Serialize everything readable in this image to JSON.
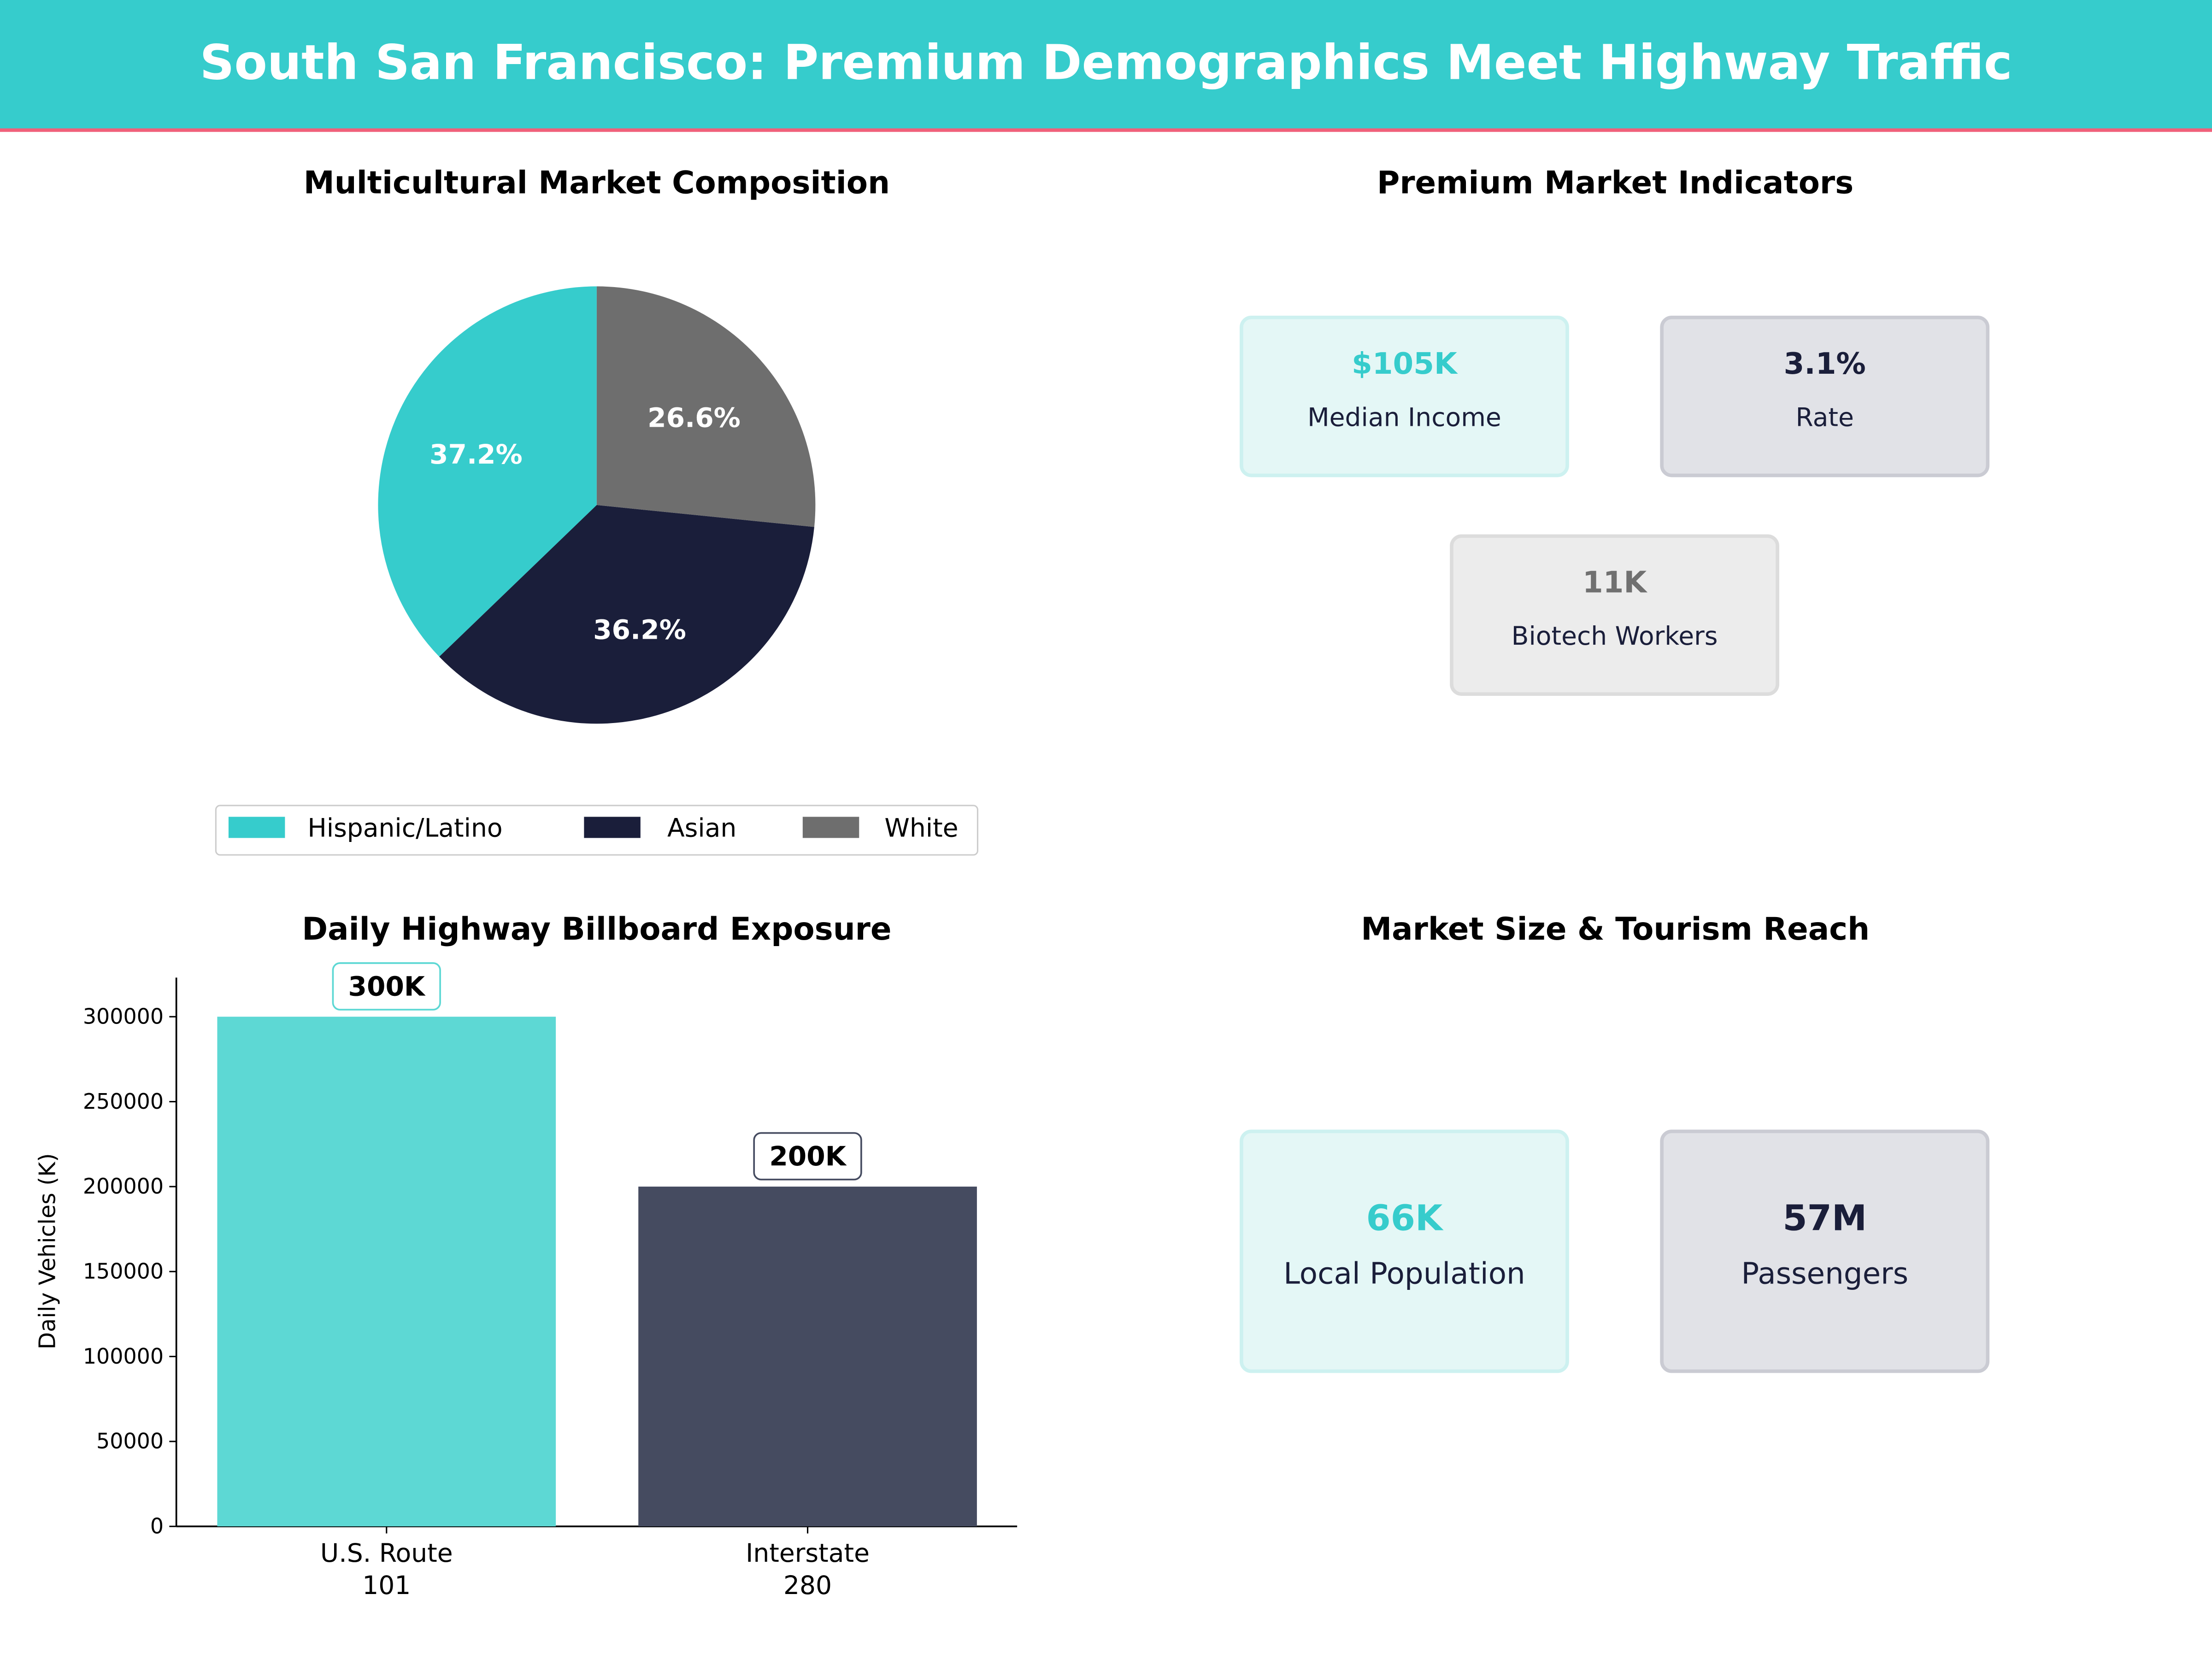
{
  "header": {
    "title": "South San Francisco: Premium Demographics Meet Highway Traffic",
    "bg_color": "#36CCCC",
    "rule_color": "#F0607A"
  },
  "indicators": {
    "title": "Premium Market Indicators",
    "cards": [
      {
        "value": "$105K",
        "label": "Median Income",
        "value_color": "#36CCCC",
        "bg": "#E4F7F6",
        "border": "#CDF1F0"
      },
      {
        "value": "3.1%",
        "label": "Rate",
        "value_color": "#1A1E3A",
        "bg": "#E1E2E7",
        "border": "#CACBD3"
      },
      {
        "value": "11K",
        "label": "Biotech Workers",
        "value_color": "#707070",
        "bg": "#ECECEC",
        "border": "#DCDCDC"
      }
    ]
  },
  "market_size": {
    "title": "Market Size & Tourism Reach",
    "cards": [
      {
        "value": "66K",
        "label": "Local Population",
        "value_color": "#36CCCC",
        "bg": "#E4F7F6",
        "border": "#CDF1F0"
      },
      {
        "value": "57M",
        "label": "Passengers",
        "value_color": "#1A1E3A",
        "bg": "#E1E2E7",
        "border": "#CACBD3"
      }
    ]
  },
  "chart_data": [
    {
      "type": "pie",
      "title": "Multicultural Market Composition",
      "categories": [
        "Hispanic/Latino",
        "Asian",
        "White"
      ],
      "values": [
        37.2,
        36.2,
        26.6
      ],
      "labels": [
        "37.2%",
        "36.2%",
        "26.6%"
      ],
      "colors": [
        "#36CCCC",
        "#1A1E3A",
        "#6E6E6E"
      ],
      "legend": "bottom"
    },
    {
      "type": "bar",
      "title": "Daily Highway Billboard Exposure",
      "ylabel": "Daily Vehicles (K)",
      "xlabel": "",
      "categories": [
        [
          "U.S. Route",
          "101"
        ],
        [
          "Interstate",
          "280"
        ]
      ],
      "values": [
        300000,
        200000
      ],
      "data_labels": [
        "300K",
        "200K"
      ],
      "colors": [
        "#5DD8D4",
        "#454B60"
      ],
      "label_border_colors": [
        "#5DD8D4",
        "#454B60"
      ],
      "yticks": [
        "0",
        "50000",
        "100000",
        "150000",
        "200000",
        "250000",
        "300000"
      ],
      "ylim": [
        0,
        323000
      ],
      "grid": false
    }
  ]
}
